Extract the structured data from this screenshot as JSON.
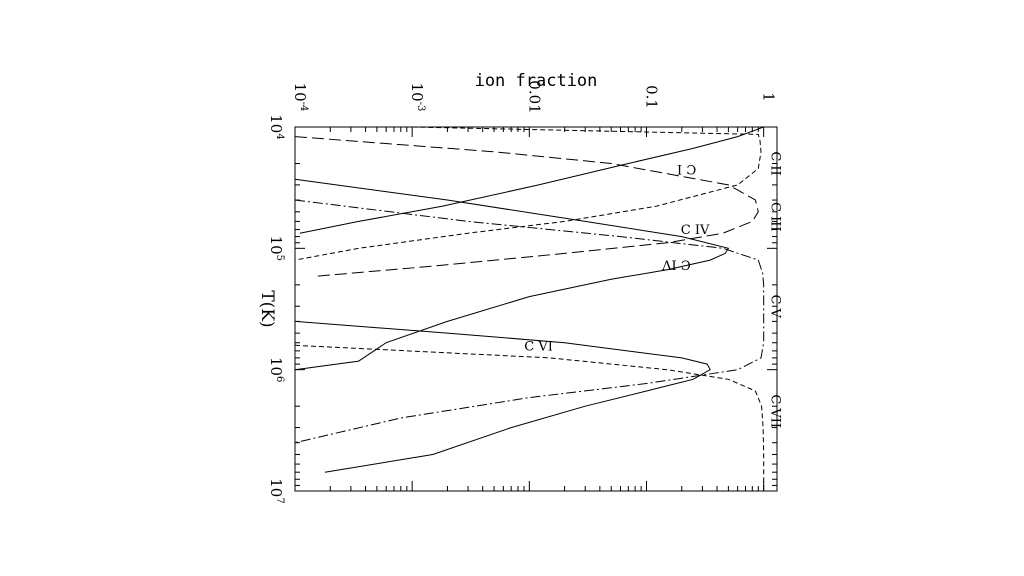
{
  "chart_data": {
    "type": "line",
    "title": "",
    "orientation": "rotated 90 degrees clockwise",
    "xlabel": "T(K)",
    "ylabel": "ion fraction",
    "x_scale": "log",
    "y_scale": "log",
    "xlim": [
      10000,
      10000000
    ],
    "ylim": [
      0.0001,
      1.3
    ],
    "x_ticks": [
      {
        "value": 10000,
        "base": "10",
        "exp": "4"
      },
      {
        "value": 100000,
        "base": "10",
        "exp": "5"
      },
      {
        "value": 1000000,
        "base": "10",
        "exp": "6"
      },
      {
        "value": 10000000,
        "base": "10",
        "exp": "7"
      }
    ],
    "y_ticks": [
      {
        "value": 0.0001,
        "base": "10",
        "exp": "-4"
      },
      {
        "value": 0.001,
        "base": "10",
        "exp": "-3"
      },
      {
        "value": 0.01,
        "base": "0.01",
        "exp": ""
      },
      {
        "value": 0.1,
        "base": "0.1",
        "exp": ""
      },
      {
        "value": 1,
        "base": "1",
        "exp": ""
      }
    ],
    "series": [
      {
        "name": "C I",
        "dash": "solid",
        "x": [
          10000,
          12000,
          15000,
          20000,
          30000,
          45000,
          60000,
          75000
        ],
        "y": [
          1.0,
          0.6,
          0.25,
          0.07,
          0.012,
          0.0018,
          0.00035,
          0.00011
        ]
      },
      {
        "name": "C II",
        "dash": "dashed",
        "x": [
          10000,
          11500,
          13000,
          16000,
          22000,
          30000,
          45000,
          60000,
          75000,
          100000,
          125000
        ],
        "y": [
          0.001,
          0.9,
          0.93,
          0.95,
          0.9,
          0.6,
          0.12,
          0.02,
          0.003,
          0.00035,
          0.0001
        ]
      },
      {
        "name": "C III",
        "dash": "long-dash",
        "x": [
          12000,
          16000,
          20000,
          30000,
          40000,
          50000,
          60000,
          75000,
          90000,
          110000,
          140000,
          170000
        ],
        "y": [
          0.0001,
          0.005,
          0.05,
          0.5,
          0.85,
          0.9,
          0.8,
          0.45,
          0.15,
          0.02,
          0.0015,
          0.00015
        ]
      },
      {
        "name": "C IV",
        "dash": "solid",
        "x": [
          27000,
          40000,
          60000,
          80000,
          100000,
          110000,
          125000,
          150000,
          180000,
          250000,
          400000,
          600000,
          850000,
          1000000
        ],
        "y": [
          0.0001,
          0.002,
          0.03,
          0.2,
          0.5,
          0.47,
          0.35,
          0.15,
          0.05,
          0.01,
          0.002,
          0.0006,
          0.00035,
          0.0001
        ]
      },
      {
        "name": "C V",
        "dash": "dash-dot",
        "x": [
          40000,
          60000,
          80000,
          100000,
          125000,
          160000,
          200000,
          300000,
          600000,
          800000,
          1000000,
          1300000,
          1700000,
          2500000,
          4000000
        ],
        "y": [
          0.0001,
          0.003,
          0.06,
          0.45,
          0.9,
          0.98,
          1.0,
          1.0,
          1.0,
          0.95,
          0.6,
          0.1,
          0.01,
          0.0008,
          0.0001
        ]
      },
      {
        "name": "C VI",
        "dash": "solid",
        "x": [
          400000,
          500000,
          600000,
          800000,
          900000,
          1000000,
          1200000,
          1500000,
          2000000,
          3000000,
          5000000,
          7000000
        ],
        "y": [
          0.0001,
          0.002,
          0.02,
          0.2,
          0.33,
          0.35,
          0.25,
          0.1,
          0.03,
          0.007,
          0.0015,
          0.00018
        ]
      },
      {
        "name": "C VII",
        "dash": "dashed",
        "x": [
          630000,
          800000,
          1000000,
          1200000,
          1500000,
          2000000,
          3000000,
          5000000,
          10000000
        ],
        "y": [
          0.0001,
          0.015,
          0.15,
          0.5,
          0.85,
          0.96,
          0.99,
          1.0,
          1.0
        ]
      }
    ],
    "annotations": [
      {
        "text": "C I",
        "x": 22000,
        "y": 0.22,
        "rotate": 180
      },
      {
        "text": "C II",
        "x": 20000,
        "y": 1.25,
        "rotate": 90
      },
      {
        "text": "C III",
        "x": 55000,
        "y": 1.25,
        "rotate": 90
      },
      {
        "text": "C IV",
        "x": 71000,
        "y": 0.26,
        "rotate": 0
      },
      {
        "text": "C IV",
        "x": 135000,
        "y": 0.18,
        "rotate": 180
      },
      {
        "text": "C V",
        "x": 300000,
        "y": 1.25,
        "rotate": 90
      },
      {
        "text": "C VI",
        "x": 650000,
        "y": 0.012,
        "rotate": 0
      },
      {
        "text": "C VII",
        "x": 2200000,
        "y": 1.25,
        "rotate": 90
      }
    ],
    "grid": false,
    "legend": "none"
  }
}
